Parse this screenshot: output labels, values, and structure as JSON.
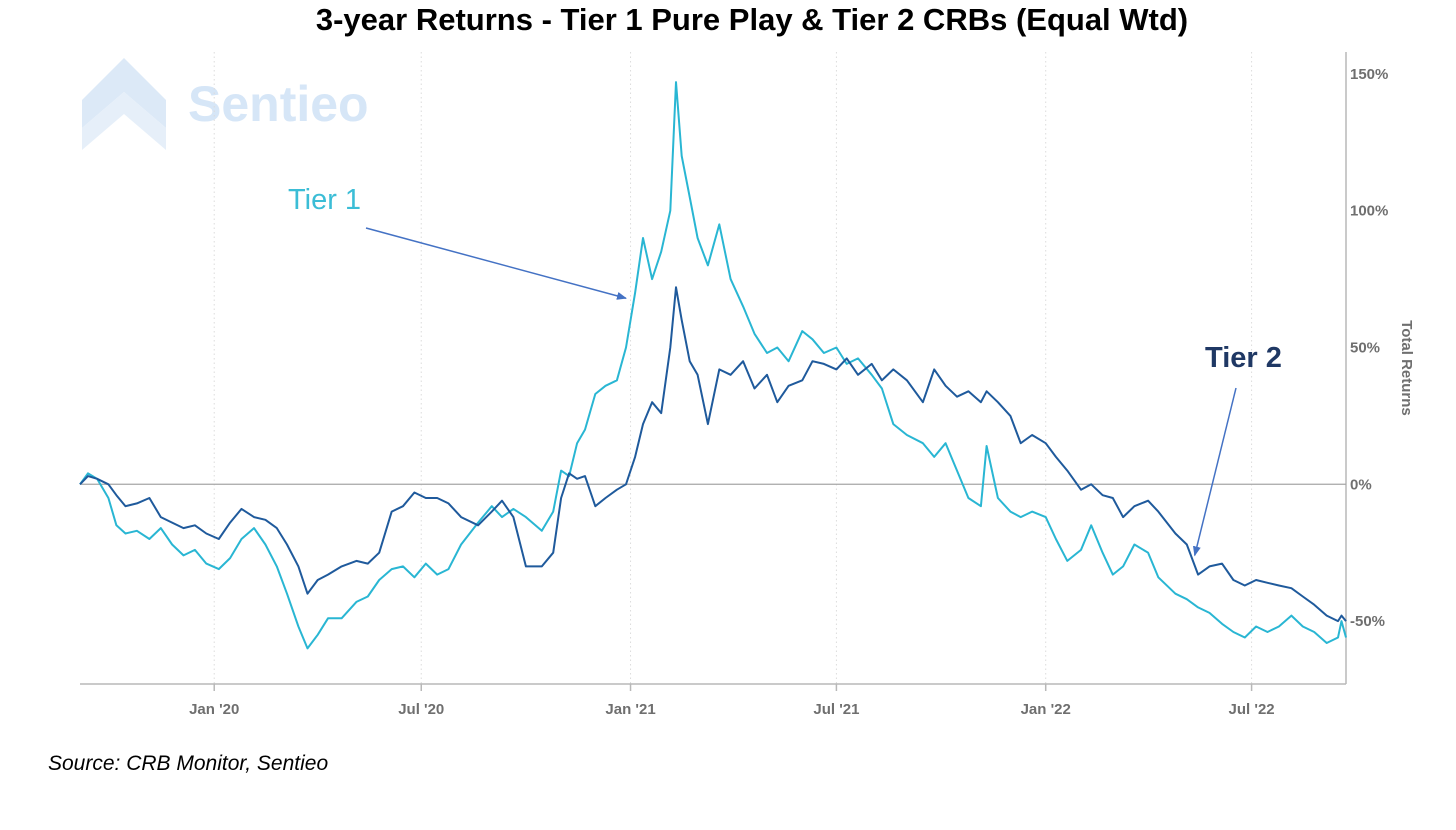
{
  "chart_data": {
    "type": "line",
    "title": "3-year Returns - Tier 1 Pure Play & Tier 2 CRBs (Equal Wtd)",
    "ylabel": "Total Returns",
    "y_ticks": [
      "150%",
      "100%",
      "50%",
      "0%",
      "-50%"
    ],
    "x_ticks": [
      "Jan '20",
      "Jul '20",
      "Jan '21",
      "Jul '21",
      "Jan '22",
      "Jul '22"
    ],
    "ylim": [
      -73,
      158
    ],
    "xlim": [
      "2019-09-05",
      "2022-09-22"
    ],
    "y_axis_side": "right",
    "grid": "vertical dotted lines at x ticks",
    "reference_line": 0,
    "source": "Source: CRB Monitor, Sentieo",
    "watermark": "Sentieo",
    "annotations": [
      {
        "text": "Tier 1",
        "color": "#3bbdd6",
        "series": "Tier 1",
        "arrow_to": {
          "date": "2020-12-28",
          "value": 68
        }
      },
      {
        "text": "Tier 2",
        "color": "#1f3864",
        "series": "Tier 2",
        "arrow_to": {
          "date": "2022-05-12",
          "value": -26
        }
      }
    ],
    "series": [
      {
        "name": "Tier 1",
        "color": "#29b6d3",
        "points": [
          [
            "2019-09-05",
            0
          ],
          [
            "2019-09-12",
            4
          ],
          [
            "2019-09-20",
            2
          ],
          [
            "2019-09-30",
            -5
          ],
          [
            "2019-10-07",
            -15
          ],
          [
            "2019-10-15",
            -18
          ],
          [
            "2019-10-25",
            -17
          ],
          [
            "2019-11-05",
            -20
          ],
          [
            "2019-11-15",
            -16
          ],
          [
            "2019-11-25",
            -22
          ],
          [
            "2019-12-05",
            -26
          ],
          [
            "2019-12-15",
            -24
          ],
          [
            "2019-12-25",
            -29
          ],
          [
            "2020-01-05",
            -31
          ],
          [
            "2020-01-15",
            -27
          ],
          [
            "2020-01-25",
            -20
          ],
          [
            "2020-02-05",
            -16
          ],
          [
            "2020-02-15",
            -22
          ],
          [
            "2020-02-25",
            -30
          ],
          [
            "2020-03-05",
            -40
          ],
          [
            "2020-03-15",
            -52
          ],
          [
            "2020-03-23",
            -60
          ],
          [
            "2020-04-01",
            -55
          ],
          [
            "2020-04-10",
            -49
          ],
          [
            "2020-04-22",
            -49
          ],
          [
            "2020-05-05",
            -43
          ],
          [
            "2020-05-15",
            -41
          ],
          [
            "2020-05-25",
            -35
          ],
          [
            "2020-06-05",
            -31
          ],
          [
            "2020-06-15",
            -30
          ],
          [
            "2020-06-25",
            -34
          ],
          [
            "2020-07-05",
            -29
          ],
          [
            "2020-07-15",
            -33
          ],
          [
            "2020-07-25",
            -31
          ],
          [
            "2020-08-05",
            -22
          ],
          [
            "2020-08-20",
            -14
          ],
          [
            "2020-09-01",
            -8
          ],
          [
            "2020-09-10",
            -12
          ],
          [
            "2020-09-20",
            -9
          ],
          [
            "2020-10-01",
            -12
          ],
          [
            "2020-10-15",
            -17
          ],
          [
            "2020-10-25",
            -10
          ],
          [
            "2020-11-01",
            5
          ],
          [
            "2020-11-08",
            3
          ],
          [
            "2020-11-15",
            15
          ],
          [
            "2020-11-22",
            20
          ],
          [
            "2020-12-01",
            33
          ],
          [
            "2020-12-10",
            36
          ],
          [
            "2020-12-20",
            38
          ],
          [
            "2020-12-28",
            50
          ],
          [
            "2021-01-05",
            70
          ],
          [
            "2021-01-12",
            90
          ],
          [
            "2021-01-20",
            75
          ],
          [
            "2021-01-28",
            85
          ],
          [
            "2021-02-05",
            100
          ],
          [
            "2021-02-10",
            147
          ],
          [
            "2021-02-15",
            120
          ],
          [
            "2021-02-22",
            105
          ],
          [
            "2021-03-01",
            90
          ],
          [
            "2021-03-10",
            80
          ],
          [
            "2021-03-20",
            95
          ],
          [
            "2021-03-30",
            75
          ],
          [
            "2021-04-10",
            65
          ],
          [
            "2021-04-20",
            55
          ],
          [
            "2021-05-01",
            48
          ],
          [
            "2021-05-10",
            50
          ],
          [
            "2021-05-20",
            45
          ],
          [
            "2021-06-01",
            56
          ],
          [
            "2021-06-10",
            53
          ],
          [
            "2021-06-20",
            48
          ],
          [
            "2021-07-01",
            50
          ],
          [
            "2021-07-10",
            44
          ],
          [
            "2021-07-20",
            46
          ],
          [
            "2021-08-01",
            40
          ],
          [
            "2021-08-10",
            35
          ],
          [
            "2021-08-20",
            22
          ],
          [
            "2021-09-01",
            18
          ],
          [
            "2021-09-15",
            15
          ],
          [
            "2021-09-25",
            10
          ],
          [
            "2021-10-05",
            15
          ],
          [
            "2021-10-15",
            5
          ],
          [
            "2021-10-25",
            -5
          ],
          [
            "2021-11-05",
            -8
          ],
          [
            "2021-11-10",
            14
          ],
          [
            "2021-11-20",
            -5
          ],
          [
            "2021-12-01",
            -10
          ],
          [
            "2021-12-10",
            -12
          ],
          [
            "2021-12-20",
            -10
          ],
          [
            "2022-01-01",
            -12
          ],
          [
            "2022-01-10",
            -20
          ],
          [
            "2022-01-20",
            -28
          ],
          [
            "2022-02-01",
            -24
          ],
          [
            "2022-02-10",
            -15
          ],
          [
            "2022-02-20",
            -25
          ],
          [
            "2022-03-01",
            -33
          ],
          [
            "2022-03-10",
            -30
          ],
          [
            "2022-03-20",
            -22
          ],
          [
            "2022-04-01",
            -25
          ],
          [
            "2022-04-10",
            -34
          ],
          [
            "2022-04-25",
            -40
          ],
          [
            "2022-05-05",
            -42
          ],
          [
            "2022-05-15",
            -45
          ],
          [
            "2022-05-25",
            -47
          ],
          [
            "2022-06-05",
            -51
          ],
          [
            "2022-06-15",
            -54
          ],
          [
            "2022-06-25",
            -56
          ],
          [
            "2022-07-05",
            -52
          ],
          [
            "2022-07-15",
            -54
          ],
          [
            "2022-07-25",
            -52
          ],
          [
            "2022-08-05",
            -48
          ],
          [
            "2022-08-15",
            -52
          ],
          [
            "2022-08-25",
            -54
          ],
          [
            "2022-09-05",
            -58
          ],
          [
            "2022-09-15",
            -56
          ],
          [
            "2022-09-18",
            -50
          ],
          [
            "2022-09-22",
            -56
          ]
        ]
      },
      {
        "name": "Tier 2",
        "color": "#1f5a9c",
        "points": [
          [
            "2019-09-05",
            0
          ],
          [
            "2019-09-12",
            3
          ],
          [
            "2019-09-20",
            2
          ],
          [
            "2019-09-30",
            0
          ],
          [
            "2019-10-07",
            -4
          ],
          [
            "2019-10-15",
            -8
          ],
          [
            "2019-10-25",
            -7
          ],
          [
            "2019-11-05",
            -5
          ],
          [
            "2019-11-15",
            -12
          ],
          [
            "2019-11-25",
            -14
          ],
          [
            "2019-12-05",
            -16
          ],
          [
            "2019-12-15",
            -15
          ],
          [
            "2019-12-25",
            -18
          ],
          [
            "2020-01-05",
            -20
          ],
          [
            "2020-01-15",
            -14
          ],
          [
            "2020-01-25",
            -9
          ],
          [
            "2020-02-05",
            -12
          ],
          [
            "2020-02-15",
            -13
          ],
          [
            "2020-02-25",
            -16
          ],
          [
            "2020-03-05",
            -22
          ],
          [
            "2020-03-15",
            -30
          ],
          [
            "2020-03-23",
            -40
          ],
          [
            "2020-04-01",
            -35
          ],
          [
            "2020-04-10",
            -33
          ],
          [
            "2020-04-22",
            -30
          ],
          [
            "2020-05-05",
            -28
          ],
          [
            "2020-05-15",
            -29
          ],
          [
            "2020-05-25",
            -25
          ],
          [
            "2020-06-05",
            -10
          ],
          [
            "2020-06-15",
            -8
          ],
          [
            "2020-06-25",
            -3
          ],
          [
            "2020-07-05",
            -5
          ],
          [
            "2020-07-15",
            -5
          ],
          [
            "2020-07-25",
            -7
          ],
          [
            "2020-08-05",
            -12
          ],
          [
            "2020-08-20",
            -15
          ],
          [
            "2020-09-01",
            -10
          ],
          [
            "2020-09-10",
            -6
          ],
          [
            "2020-09-20",
            -12
          ],
          [
            "2020-10-01",
            -30
          ],
          [
            "2020-10-15",
            -30
          ],
          [
            "2020-10-25",
            -25
          ],
          [
            "2020-11-01",
            -5
          ],
          [
            "2020-11-08",
            4
          ],
          [
            "2020-11-15",
            2
          ],
          [
            "2020-11-22",
            3
          ],
          [
            "2020-12-01",
            -8
          ],
          [
            "2020-12-10",
            -5
          ],
          [
            "2020-12-20",
            -2
          ],
          [
            "2020-12-28",
            0
          ],
          [
            "2021-01-05",
            10
          ],
          [
            "2021-01-12",
            22
          ],
          [
            "2021-01-20",
            30
          ],
          [
            "2021-01-28",
            26
          ],
          [
            "2021-02-05",
            50
          ],
          [
            "2021-02-10",
            72
          ],
          [
            "2021-02-15",
            60
          ],
          [
            "2021-02-22",
            45
          ],
          [
            "2021-03-01",
            40
          ],
          [
            "2021-03-10",
            22
          ],
          [
            "2021-03-20",
            42
          ],
          [
            "2021-03-30",
            40
          ],
          [
            "2021-04-10",
            45
          ],
          [
            "2021-04-20",
            35
          ],
          [
            "2021-05-01",
            40
          ],
          [
            "2021-05-10",
            30
          ],
          [
            "2021-05-20",
            36
          ],
          [
            "2021-06-01",
            38
          ],
          [
            "2021-06-10",
            45
          ],
          [
            "2021-06-20",
            44
          ],
          [
            "2021-07-01",
            42
          ],
          [
            "2021-07-10",
            46
          ],
          [
            "2021-07-20",
            40
          ],
          [
            "2021-08-01",
            44
          ],
          [
            "2021-08-10",
            38
          ],
          [
            "2021-08-20",
            42
          ],
          [
            "2021-09-01",
            38
          ],
          [
            "2021-09-15",
            30
          ],
          [
            "2021-09-25",
            42
          ],
          [
            "2021-10-05",
            36
          ],
          [
            "2021-10-15",
            32
          ],
          [
            "2021-10-25",
            34
          ],
          [
            "2021-11-05",
            30
          ],
          [
            "2021-11-10",
            34
          ],
          [
            "2021-11-20",
            30
          ],
          [
            "2021-12-01",
            25
          ],
          [
            "2021-12-10",
            15
          ],
          [
            "2021-12-20",
            18
          ],
          [
            "2022-01-01",
            15
          ],
          [
            "2022-01-10",
            10
          ],
          [
            "2022-01-20",
            5
          ],
          [
            "2022-02-01",
            -2
          ],
          [
            "2022-02-10",
            0
          ],
          [
            "2022-02-20",
            -4
          ],
          [
            "2022-03-01",
            -5
          ],
          [
            "2022-03-10",
            -12
          ],
          [
            "2022-03-20",
            -8
          ],
          [
            "2022-04-01",
            -6
          ],
          [
            "2022-04-10",
            -10
          ],
          [
            "2022-04-25",
            -18
          ],
          [
            "2022-05-05",
            -22
          ],
          [
            "2022-05-15",
            -33
          ],
          [
            "2022-05-25",
            -30
          ],
          [
            "2022-06-05",
            -29
          ],
          [
            "2022-06-15",
            -35
          ],
          [
            "2022-06-25",
            -37
          ],
          [
            "2022-07-05",
            -35
          ],
          [
            "2022-07-15",
            -36
          ],
          [
            "2022-07-25",
            -37
          ],
          [
            "2022-08-05",
            -38
          ],
          [
            "2022-08-15",
            -41
          ],
          [
            "2022-08-25",
            -44
          ],
          [
            "2022-09-05",
            -48
          ],
          [
            "2022-09-15",
            -50
          ],
          [
            "2022-09-18",
            -48
          ],
          [
            "2022-09-22",
            -50
          ]
        ]
      }
    ]
  }
}
